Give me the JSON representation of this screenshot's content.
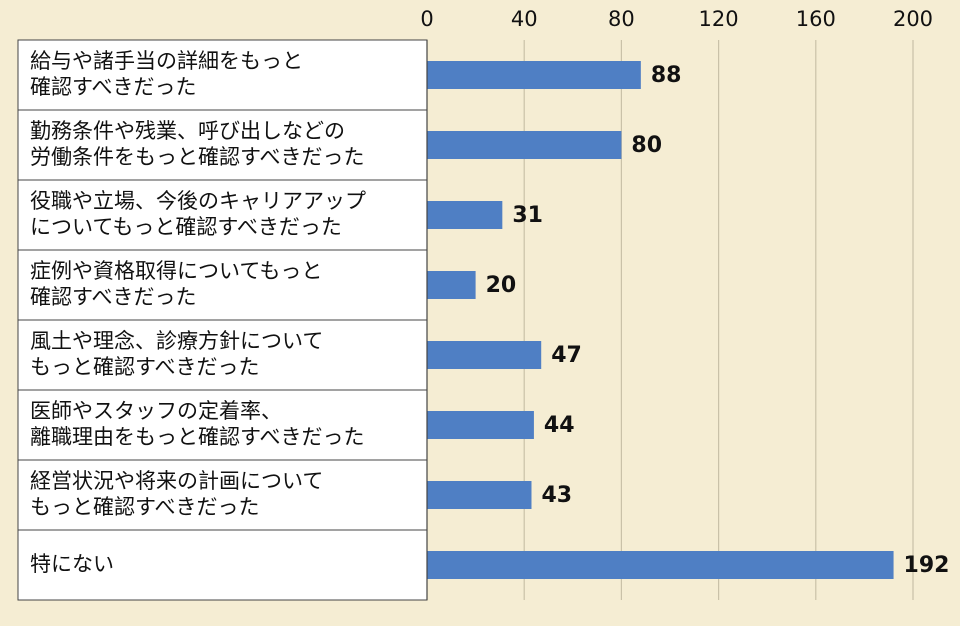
{
  "chart_data": {
    "type": "bar",
    "orientation": "horizontal",
    "categories": [
      [
        "給与や諸手当の詳細をもっと",
        "確認すべきだった"
      ],
      [
        "勤務条件や残業、呼び出しなどの",
        "労働条件をもっと確認すべきだった"
      ],
      [
        "役職や立場、今後のキャリアアップ",
        "についてもっと確認すべきだった"
      ],
      [
        "症例や資格取得についてもっと",
        "確認すべきだった"
      ],
      [
        "風土や理念、診療方針について",
        "もっと確認すべきだった"
      ],
      [
        "医師やスタッフの定着率、",
        "離職理由をもっと確認すべきだった"
      ],
      [
        "経営状況や将来の計画について",
        "もっと確認すべきだった"
      ],
      [
        "特にない"
      ]
    ],
    "values": [
      88,
      80,
      31,
      20,
      47,
      44,
      43,
      192
    ],
    "xlim": [
      0,
      200
    ],
    "ticks": [
      0,
      40,
      80,
      120,
      160,
      200
    ],
    "tick_labels": [
      "0",
      "40",
      "80",
      "120",
      "160",
      "200"
    ],
    "title": "",
    "xlabel": "",
    "ylabel": "",
    "grid": true,
    "legend": "none",
    "colors": {
      "bar": "#4f7fc4",
      "background": "#f5edd3",
      "label_panel": "#ffffff",
      "grid": "#c9c1a8",
      "axis": "#444444"
    }
  }
}
